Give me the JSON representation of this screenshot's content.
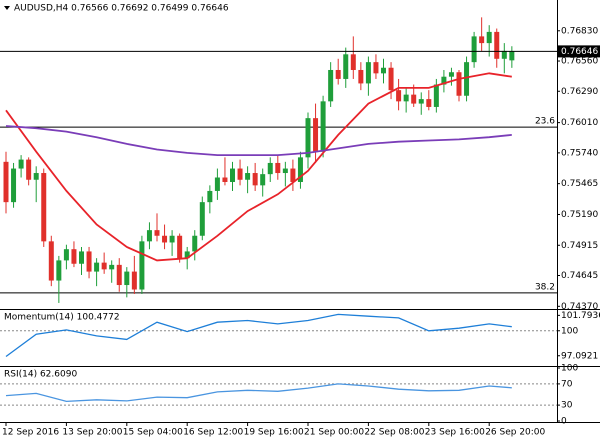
{
  "chart_data": [
    {
      "type": "candlestick",
      "title": "AUDUSD,H4  0.76566 0.76692 0.76499 0.76646",
      "categories": [
        "12 Sep 2016",
        null,
        null,
        null,
        null,
        null,
        null,
        null,
        "13 Sep 20:00",
        null,
        null,
        null,
        null,
        null,
        null,
        null,
        "15 Sep 04:00",
        null,
        null,
        null,
        null,
        null,
        null,
        null,
        "16 Sep 12:00",
        null,
        null,
        null,
        null,
        null,
        null,
        null,
        "19 Sep 16:00",
        null,
        null,
        null,
        null,
        null,
        null,
        null,
        "21 Sep 00:00",
        null,
        null,
        null,
        null,
        null,
        null,
        null,
        "22 Sep 08:00",
        null,
        null,
        null,
        null,
        null,
        null,
        null,
        "23 Sep 16:00",
        null,
        null,
        null,
        null,
        null,
        null,
        null,
        "26 Sep 20:00",
        null,
        null,
        null
      ],
      "open": [
        0.7566,
        0.753,
        0.756,
        0.7568,
        0.755,
        0.7556,
        0.7495,
        0.746,
        0.7478,
        0.7488,
        0.7475,
        0.7486,
        0.7468,
        0.7476,
        0.747,
        0.7474,
        0.7456,
        0.7468,
        0.7452,
        0.7495,
        0.7505,
        0.75,
        0.7494,
        0.75,
        0.748,
        0.7486,
        0.75,
        0.753,
        0.754,
        0.7552,
        0.7548,
        0.756,
        0.755,
        0.7556,
        0.7545,
        0.7555,
        0.7565,
        0.7556,
        0.756,
        0.7548,
        0.757,
        0.7605,
        0.7575,
        0.762,
        0.7648,
        0.764,
        0.7662,
        0.7648,
        0.7636,
        0.7655,
        0.7645,
        0.765,
        0.763,
        0.762,
        0.7626,
        0.7618,
        0.7622,
        0.7615,
        0.7635,
        0.7642,
        0.7646,
        0.7625,
        0.7655,
        0.7678,
        0.7672,
        0.7682,
        0.7658,
        0.76566
      ],
      "high": [
        0.7575,
        0.7565,
        0.7572,
        0.757,
        0.7562,
        0.756,
        0.75,
        0.7482,
        0.7492,
        0.7495,
        0.749,
        0.749,
        0.748,
        0.7485,
        0.7478,
        0.748,
        0.7472,
        0.7482,
        0.75,
        0.7512,
        0.752,
        0.751,
        0.7505,
        0.7502,
        0.749,
        0.7505,
        0.7535,
        0.7545,
        0.756,
        0.757,
        0.7566,
        0.7568,
        0.7562,
        0.7565,
        0.756,
        0.757,
        0.7572,
        0.7566,
        0.7568,
        0.7575,
        0.761,
        0.7618,
        0.7625,
        0.7655,
        0.7658,
        0.7668,
        0.7678,
        0.7655,
        0.766,
        0.7662,
        0.7658,
        0.7655,
        0.764,
        0.7632,
        0.7635,
        0.7628,
        0.763,
        0.764,
        0.7648,
        0.765,
        0.7648,
        0.766,
        0.7682,
        0.7695,
        0.7688,
        0.7685,
        0.7672,
        0.76692
      ],
      "low": [
        0.752,
        0.7525,
        0.7552,
        0.7545,
        0.753,
        0.749,
        0.7455,
        0.744,
        0.747,
        0.7472,
        0.7465,
        0.7462,
        0.7455,
        0.7466,
        0.7458,
        0.745,
        0.7445,
        0.7448,
        0.7448,
        0.7488,
        0.7495,
        0.7488,
        0.7482,
        0.7476,
        0.747,
        0.7478,
        0.7496,
        0.752,
        0.7532,
        0.7545,
        0.754,
        0.7545,
        0.7538,
        0.754,
        0.7535,
        0.7548,
        0.755,
        0.7544,
        0.754,
        0.7542,
        0.756,
        0.7565,
        0.757,
        0.7615,
        0.7635,
        0.7632,
        0.764,
        0.763,
        0.7625,
        0.764,
        0.7636,
        0.7622,
        0.7612,
        0.761,
        0.7615,
        0.7608,
        0.7612,
        0.761,
        0.7628,
        0.7634,
        0.762,
        0.762,
        0.765,
        0.7665,
        0.766,
        0.765,
        0.7645,
        0.76499
      ],
      "close": [
        0.753,
        0.756,
        0.7568,
        0.755,
        0.7556,
        0.7495,
        0.746,
        0.7478,
        0.7488,
        0.7475,
        0.7486,
        0.7468,
        0.7476,
        0.747,
        0.7474,
        0.7456,
        0.7468,
        0.7452,
        0.7495,
        0.7505,
        0.75,
        0.7494,
        0.75,
        0.748,
        0.7486,
        0.75,
        0.753,
        0.754,
        0.7552,
        0.7548,
        0.756,
        0.755,
        0.7556,
        0.7545,
        0.7555,
        0.7565,
        0.7556,
        0.756,
        0.7548,
        0.757,
        0.7605,
        0.7575,
        0.762,
        0.7648,
        0.764,
        0.7662,
        0.7648,
        0.7636,
        0.7655,
        0.7645,
        0.765,
        0.763,
        0.762,
        0.7626,
        0.7618,
        0.7622,
        0.7615,
        0.7635,
        0.7642,
        0.7646,
        0.7625,
        0.7655,
        0.7678,
        0.7672,
        0.7682,
        0.7658,
        0.7665,
        0.76646
      ],
      "up_color": "#1f9e3a",
      "down_color": "#e0302b",
      "series": [
        {
          "color": "#e8232a",
          "x": [
            0,
            4,
            8,
            12,
            16,
            20,
            24,
            28,
            32,
            36,
            40,
            44,
            48,
            52,
            56,
            60,
            64,
            67
          ],
          "values": [
            0.7612,
            0.7575,
            0.754,
            0.751,
            0.749,
            0.7478,
            0.748,
            0.75,
            0.7522,
            0.7537,
            0.7558,
            0.759,
            0.7618,
            0.7632,
            0.7632,
            0.764,
            0.7645,
            0.7642
          ]
        },
        {
          "color": "#7a3db8",
          "x": [
            0,
            4,
            8,
            12,
            16,
            20,
            24,
            28,
            32,
            36,
            40,
            44,
            48,
            52,
            56,
            60,
            64,
            67
          ],
          "values": [
            0.7598,
            0.7596,
            0.7593,
            0.7588,
            0.7582,
            0.7577,
            0.7574,
            0.7572,
            0.7572,
            0.7572,
            0.7574,
            0.7578,
            0.7582,
            0.7584,
            0.7585,
            0.7586,
            0.7588,
            0.759
          ]
        }
      ],
      "levels": [
        {
          "name": "23.6",
          "value": 0.7597
        },
        {
          "name": "38.2",
          "value": 0.7449
        }
      ],
      "ylim": [
        0.74346,
        0.77087
      ],
      "yticks": [
        {
          "value": 0.7683,
          "label": "0.76830"
        },
        {
          "value": 0.7656,
          "label": "0.76560"
        },
        {
          "value": 0.7629,
          "label": "0.76290"
        },
        {
          "value": 0.7601,
          "label": "0.76010"
        },
        {
          "value": 0.7574,
          "label": "0.75740"
        },
        {
          "value": 0.75465,
          "label": "0.75465"
        },
        {
          "value": 0.7519,
          "label": "0.75190"
        },
        {
          "value": 0.74915,
          "label": "0.74915"
        },
        {
          "value": 0.74645,
          "label": "0.74645"
        },
        {
          "value": 0.7437,
          "label": "0.74370"
        }
      ]
    },
    {
      "type": "line",
      "title": "Momentum(14) 100.4772",
      "series": [
        {
          "color": "#1e7fd8",
          "x": [
            0,
            4,
            8,
            12,
            16,
            20,
            24,
            28,
            32,
            36,
            40,
            44,
            48,
            52,
            56,
            60,
            64,
            67
          ],
          "values": [
            97.0,
            99.6,
            100.1,
            99.4,
            99.0,
            101.0,
            99.9,
            101.0,
            101.2,
            100.8,
            101.2,
            101.9,
            101.7,
            101.5,
            100.0,
            100.3,
            100.8,
            100.4772
          ]
        }
      ],
      "ylim": [
        95.9,
        102.3
      ],
      "yticks": [
        101.7936,
        100,
        97.0921
      ],
      "levels": [
        100
      ]
    },
    {
      "type": "line",
      "title": "RSI(14) 62.6090",
      "series": [
        {
          "color": "#4a95e0",
          "x": [
            0,
            4,
            8,
            12,
            16,
            20,
            24,
            28,
            32,
            36,
            40,
            44,
            48,
            52,
            56,
            60,
            64,
            67
          ],
          "values": [
            48,
            52,
            37,
            40,
            38,
            45,
            44,
            55,
            58,
            56,
            62,
            70,
            66,
            60,
            57,
            58,
            66,
            62.609
          ]
        }
      ],
      "ylim": [
        0,
        100
      ],
      "yticks": [
        100,
        70,
        30,
        0
      ],
      "levels": [
        70,
        30
      ]
    }
  ]
}
